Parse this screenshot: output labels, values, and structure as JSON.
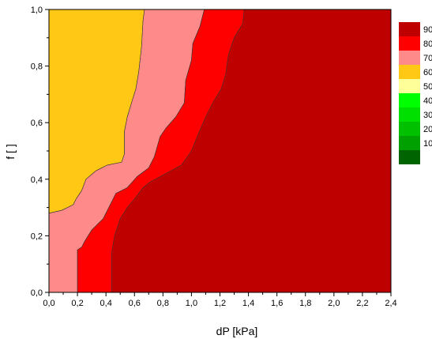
{
  "chart_data": {
    "type": "heatmap",
    "xlabel": "dP [kPa]",
    "ylabel": "f [ ]",
    "xlim": [
      0,
      2.4
    ],
    "ylim": [
      0,
      1.0
    ],
    "x_ticks": [
      "0,0",
      "0,2",
      "0,4",
      "0,6",
      "0,8",
      "1,0",
      "1,2",
      "1,4",
      "1,6",
      "1,8",
      "2,0",
      "2,2",
      "2,4"
    ],
    "y_ticks": [
      "0,0",
      "0,2",
      "0,4",
      "0,6",
      "0,8",
      "1,0"
    ],
    "legend": {
      "position": "right",
      "levels": [
        {
          "label": "90",
          "color": "#bf0000"
        },
        {
          "label": "80",
          "color": "#ff0000"
        },
        {
          "label": "70",
          "color": "#ff8a8a"
        },
        {
          "label": "60",
          "color": "#ffc814"
        },
        {
          "label": "50",
          "color": "#ffff99"
        },
        {
          "label": "40",
          "color": "#00ff00"
        },
        {
          "label": "30",
          "color": "#00e000"
        },
        {
          "label": "20",
          "color": "#00c000"
        },
        {
          "label": "10",
          "color": "#00a000"
        },
        {
          "label": "",
          "color": "#006400"
        }
      ]
    },
    "regions": [
      {
        "level": "60",
        "color": "#ffc814",
        "boundary": [
          [
            0.0,
            1.0
          ],
          [
            0.67,
            1.0
          ],
          [
            0.66,
            0.96
          ],
          [
            0.65,
            0.87
          ],
          [
            0.63,
            0.78
          ],
          [
            0.61,
            0.72
          ],
          [
            0.58,
            0.67
          ],
          [
            0.55,
            0.62
          ],
          [
            0.53,
            0.57
          ],
          [
            0.53,
            0.49
          ],
          [
            0.51,
            0.46
          ],
          [
            0.41,
            0.45
          ],
          [
            0.33,
            0.43
          ],
          [
            0.26,
            0.4
          ],
          [
            0.23,
            0.36
          ],
          [
            0.19,
            0.33
          ],
          [
            0.17,
            0.31
          ],
          [
            0.13,
            0.3
          ],
          [
            0.09,
            0.29
          ],
          [
            0.0,
            0.28
          ]
        ]
      },
      {
        "level": "70",
        "color": "#ff8a8a",
        "boundary": [
          [
            0.67,
            1.0
          ],
          [
            1.09,
            1.0
          ],
          [
            1.06,
            0.94
          ],
          [
            1.01,
            0.88
          ],
          [
            1.0,
            0.82
          ],
          [
            0.96,
            0.75
          ],
          [
            0.95,
            0.67
          ],
          [
            0.89,
            0.62
          ],
          [
            0.82,
            0.58
          ],
          [
            0.78,
            0.55
          ],
          [
            0.74,
            0.48
          ],
          [
            0.7,
            0.44
          ],
          [
            0.62,
            0.41
          ],
          [
            0.55,
            0.37
          ],
          [
            0.47,
            0.35
          ],
          [
            0.42,
            0.3
          ],
          [
            0.38,
            0.26
          ],
          [
            0.3,
            0.22
          ],
          [
            0.25,
            0.18
          ],
          [
            0.23,
            0.16
          ],
          [
            0.2,
            0.15
          ],
          [
            0.2,
            0.0
          ],
          [
            0.0,
            0.0
          ],
          [
            0.0,
            0.28
          ],
          [
            0.09,
            0.29
          ],
          [
            0.13,
            0.3
          ],
          [
            0.17,
            0.31
          ],
          [
            0.19,
            0.33
          ],
          [
            0.23,
            0.36
          ],
          [
            0.26,
            0.4
          ],
          [
            0.33,
            0.43
          ],
          [
            0.41,
            0.45
          ],
          [
            0.51,
            0.46
          ],
          [
            0.53,
            0.49
          ],
          [
            0.53,
            0.57
          ],
          [
            0.55,
            0.62
          ],
          [
            0.58,
            0.67
          ],
          [
            0.61,
            0.72
          ],
          [
            0.63,
            0.78
          ],
          [
            0.65,
            0.87
          ],
          [
            0.66,
            0.96
          ]
        ]
      },
      {
        "level": "80",
        "color": "#ff0000",
        "boundary": [
          [
            1.09,
            1.0
          ],
          [
            1.37,
            1.0
          ],
          [
            1.36,
            0.95
          ],
          [
            1.3,
            0.9
          ],
          [
            1.26,
            0.84
          ],
          [
            1.24,
            0.77
          ],
          [
            1.21,
            0.72
          ],
          [
            1.15,
            0.67
          ],
          [
            1.1,
            0.62
          ],
          [
            1.04,
            0.55
          ],
          [
            1.0,
            0.5
          ],
          [
            0.93,
            0.45
          ],
          [
            0.82,
            0.42
          ],
          [
            0.71,
            0.39
          ],
          [
            0.66,
            0.37
          ],
          [
            0.6,
            0.33
          ],
          [
            0.55,
            0.3
          ],
          [
            0.5,
            0.26
          ],
          [
            0.46,
            0.2
          ],
          [
            0.44,
            0.14
          ],
          [
            0.44,
            0.0
          ],
          [
            0.2,
            0.0
          ],
          [
            0.2,
            0.15
          ],
          [
            0.23,
            0.16
          ],
          [
            0.25,
            0.18
          ],
          [
            0.3,
            0.22
          ],
          [
            0.38,
            0.26
          ],
          [
            0.42,
            0.3
          ],
          [
            0.47,
            0.35
          ],
          [
            0.55,
            0.37
          ],
          [
            0.62,
            0.41
          ],
          [
            0.7,
            0.44
          ],
          [
            0.74,
            0.48
          ],
          [
            0.78,
            0.55
          ],
          [
            0.82,
            0.58
          ],
          [
            0.89,
            0.62
          ],
          [
            0.95,
            0.67
          ],
          [
            0.96,
            0.75
          ],
          [
            1.0,
            0.82
          ],
          [
            1.01,
            0.88
          ],
          [
            1.06,
            0.94
          ]
        ]
      }
    ],
    "background_level": "90"
  }
}
